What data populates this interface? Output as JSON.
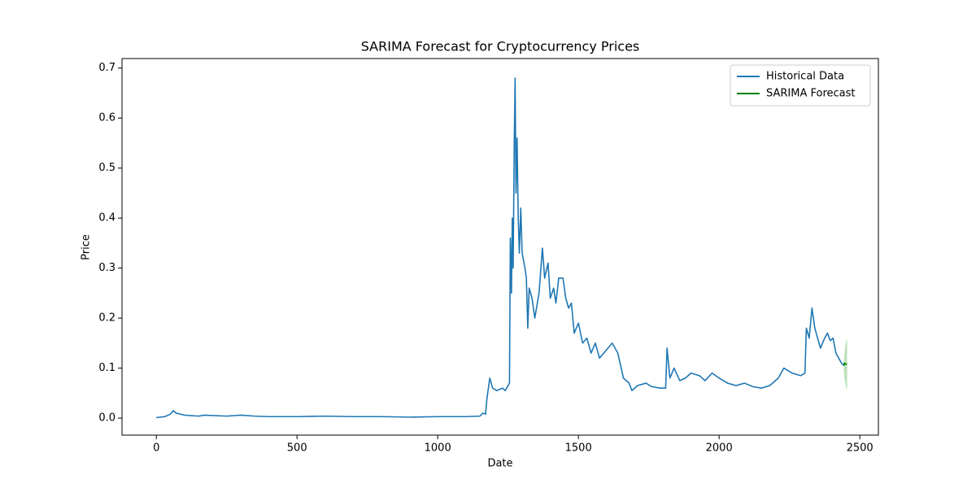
{
  "chart_data": {
    "type": "line",
    "title": "SARIMA Forecast for Cryptocurrency Prices",
    "xlabel": "Date",
    "ylabel": "Price",
    "xlim": [
      -122,
      2566
    ],
    "ylim": [
      -0.034,
      0.719
    ],
    "xticks": [
      0,
      500,
      1000,
      1500,
      2000,
      2500
    ],
    "yticks": [
      {
        "value": 0,
        "label": "0.0"
      },
      0.1,
      0.2,
      0.3,
      0.4,
      0.5,
      0.6,
      0.7
    ],
    "legend": "upper right",
    "series": [
      {
        "name": "Historical Data",
        "color": "#1f77b4",
        "x": [
          0,
          30,
          50,
          60,
          70,
          100,
          150,
          170,
          250,
          300,
          350,
          400,
          500,
          600,
          700,
          800,
          900,
          1000,
          1100,
          1150,
          1160,
          1170,
          1175,
          1180,
          1185,
          1195,
          1210,
          1230,
          1240,
          1250,
          1255,
          1258,
          1262,
          1265,
          1268,
          1272,
          1275,
          1278,
          1282,
          1286,
          1290,
          1295,
          1300,
          1310,
          1315,
          1320,
          1325,
          1335,
          1345,
          1360,
          1372,
          1380,
          1392,
          1400,
          1412,
          1420,
          1430,
          1445,
          1455,
          1465,
          1475,
          1485,
          1500,
          1515,
          1530,
          1545,
          1560,
          1575,
          1590,
          1605,
          1620,
          1640,
          1660,
          1680,
          1690,
          1710,
          1740,
          1760,
          1790,
          1810,
          1815,
          1825,
          1840,
          1860,
          1880,
          1900,
          1930,
          1950,
          1975,
          2000,
          2030,
          2060,
          2090,
          2120,
          2150,
          2180,
          2210,
          2230,
          2260,
          2290,
          2305,
          2310,
          2320,
          2330,
          2340,
          2360,
          2375,
          2385,
          2395,
          2405,
          2415,
          2425,
          2435,
          2443
        ],
        "values": [
          0.001,
          0.003,
          0.008,
          0.015,
          0.01,
          0.006,
          0.004,
          0.006,
          0.004,
          0.006,
          0.004,
          0.003,
          0.003,
          0.004,
          0.003,
          0.003,
          0.002,
          0.003,
          0.003,
          0.004,
          0.01,
          0.008,
          0.04,
          0.06,
          0.08,
          0.06,
          0.055,
          0.06,
          0.055,
          0.065,
          0.07,
          0.36,
          0.25,
          0.4,
          0.3,
          0.55,
          0.68,
          0.45,
          0.56,
          0.4,
          0.33,
          0.42,
          0.33,
          0.3,
          0.28,
          0.18,
          0.26,
          0.24,
          0.2,
          0.25,
          0.34,
          0.28,
          0.31,
          0.24,
          0.26,
          0.23,
          0.28,
          0.28,
          0.24,
          0.22,
          0.23,
          0.17,
          0.19,
          0.15,
          0.16,
          0.13,
          0.15,
          0.12,
          0.13,
          0.14,
          0.15,
          0.13,
          0.08,
          0.07,
          0.055,
          0.065,
          0.07,
          0.063,
          0.06,
          0.06,
          0.14,
          0.08,
          0.1,
          0.075,
          0.08,
          0.09,
          0.085,
          0.075,
          0.09,
          0.08,
          0.07,
          0.065,
          0.07,
          0.063,
          0.06,
          0.065,
          0.08,
          0.1,
          0.09,
          0.085,
          0.09,
          0.18,
          0.16,
          0.22,
          0.18,
          0.14,
          0.16,
          0.17,
          0.155,
          0.16,
          0.13,
          0.12,
          0.11,
          0.105
        ]
      },
      {
        "name": "SARIMA Forecast",
        "color": "#008000",
        "x": [
          2443,
          2445,
          2450,
          2455
        ],
        "values": [
          0.105,
          0.11,
          0.108,
          0.108
        ],
        "lower": [
          0.1,
          0.08,
          0.065,
          0.055
        ],
        "upper": [
          0.11,
          0.13,
          0.15,
          0.16
        ],
        "band_color": "#8fce8f"
      }
    ]
  }
}
